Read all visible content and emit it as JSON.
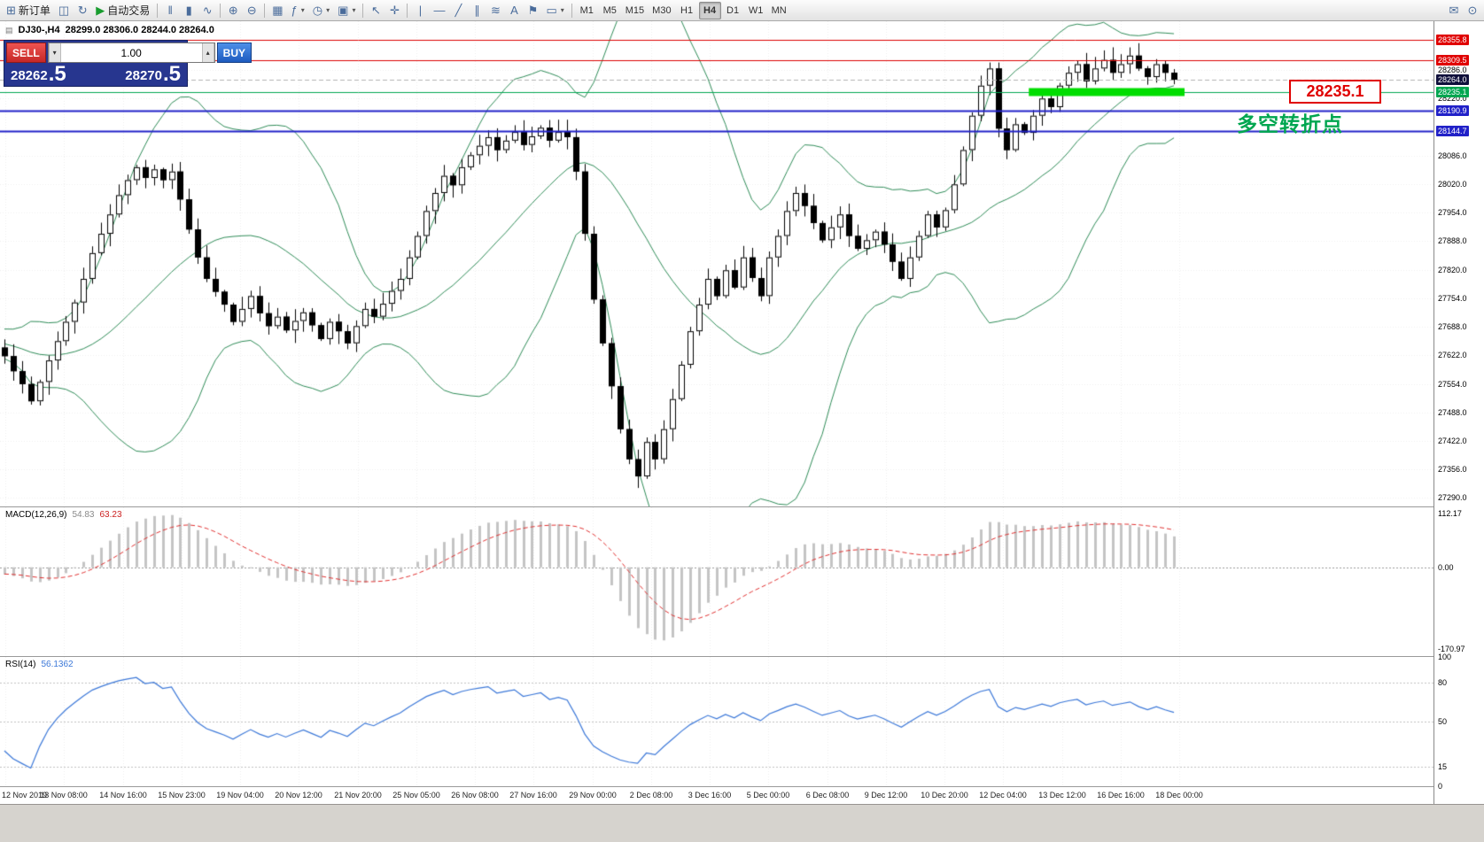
{
  "toolbar": {
    "items": [
      {
        "type": "button",
        "name": "new-order-button",
        "glyph": "⊞",
        "label": "新订单"
      },
      {
        "type": "button",
        "name": "chart-window-icon",
        "glyph": "◫"
      },
      {
        "type": "button",
        "name": "refresh-icon",
        "glyph": "↻"
      },
      {
        "type": "button",
        "name": "auto-trading-button",
        "glyph": "▶",
        "label": "自动交易",
        "glyph_color": "#189c2e"
      },
      {
        "type": "sep"
      },
      {
        "type": "button",
        "name": "bar-chart-type-icon",
        "glyph": "‖"
      },
      {
        "type": "button",
        "name": "candlestick-type-icon",
        "glyph": "▮"
      },
      {
        "type": "button",
        "name": "line-chart-type-icon",
        "glyph": "∿"
      },
      {
        "type": "sep"
      },
      {
        "type": "button",
        "name": "zoom-in-icon",
        "glyph": "⊕"
      },
      {
        "type": "button",
        "name": "zoom-out-icon",
        "glyph": "⊖"
      },
      {
        "type": "sep"
      },
      {
        "type": "button",
        "name": "tile-windows-icon",
        "glyph": "▦"
      },
      {
        "type": "button",
        "name": "indicators-icon",
        "glyph": "ƒ",
        "dropdown": true
      },
      {
        "type": "button",
        "name": "periods-icon",
        "glyph": "◷",
        "dropdown": true
      },
      {
        "type": "button",
        "name": "templates-icon",
        "glyph": "▣",
        "dropdown": true
      },
      {
        "type": "sep"
      },
      {
        "type": "button",
        "name": "cursor-icon",
        "glyph": "↖"
      },
      {
        "type": "button",
        "name": "crosshair-icon",
        "glyph": "✛"
      },
      {
        "type": "sep"
      },
      {
        "type": "button",
        "name": "vertical-line-icon",
        "glyph": "|"
      },
      {
        "type": "button",
        "name": "horizontal-line-icon",
        "glyph": "—"
      },
      {
        "type": "button",
        "name": "trendline-icon",
        "glyph": "╱"
      },
      {
        "type": "button",
        "name": "channel-icon",
        "glyph": "∥"
      },
      {
        "type": "button",
        "name": "fibonacci-icon",
        "glyph": "≋"
      },
      {
        "type": "button",
        "name": "text-tool-icon",
        "glyph": "A"
      },
      {
        "type": "button",
        "name": "label-tool-icon",
        "glyph": "⚑"
      },
      {
        "type": "button",
        "name": "shapes-icon",
        "glyph": "▭",
        "dropdown": true
      },
      {
        "type": "sep"
      },
      {
        "type": "tf-group"
      },
      {
        "type": "spacer"
      },
      {
        "type": "button",
        "name": "chat-icon",
        "glyph": "✉"
      },
      {
        "type": "button",
        "name": "search-icon",
        "glyph": "⊙"
      }
    ],
    "timeframes": [
      "M1",
      "M5",
      "M15",
      "M30",
      "H1",
      "H4",
      "D1",
      "W1",
      "MN"
    ],
    "active_timeframe": "H4"
  },
  "chart": {
    "symbol_label": "DJ30-,H4",
    "ohlc_text": "28299.0 28306.0 28244.0 28264.0",
    "symbol_icon_glyph": "▤"
  },
  "trade_panel": {
    "sell_label": "SELL",
    "buy_label": "BUY",
    "volume": "1.00",
    "volume_down_glyph": "▾",
    "volume_up_glyph": "▴",
    "sell_price_base": "28262",
    "sell_price_fraction": ".5",
    "buy_price_base": "28270",
    "buy_price_fraction": ".5"
  },
  "annotations": {
    "price_label": "28235.1",
    "turning_point_label": "多空转折点"
  },
  "price_axis": {
    "special": [
      {
        "value": "28355.8",
        "price": 28355.8,
        "bg": "#e00000",
        "role": "resistance"
      },
      {
        "value": "28309.5",
        "price": 28309.5,
        "bg": "#e00000",
        "role": "resistance"
      },
      {
        "value": "28264.0",
        "price": 28264.0,
        "bg": "#10103c",
        "role": "current-price"
      },
      {
        "value": "28235.1",
        "price": 28235.1,
        "bg": "#00a650",
        "role": "pivot"
      },
      {
        "value": "28190.9",
        "price": 28190.9,
        "bg": "#2121c8",
        "role": "support"
      },
      {
        "value": "28144.7",
        "price": 28144.7,
        "bg": "#2121c8",
        "role": "support"
      }
    ],
    "regular": [
      "28286.0",
      "28220.0",
      "28086.0",
      "28020.0",
      "27954.0",
      "27888.0",
      "27820.0",
      "27754.0",
      "27688.0",
      "27622.0",
      "27554.0",
      "27488.0",
      "27422.0",
      "27356.0",
      "27290.0"
    ]
  },
  "macd_panel": {
    "title": "MACD(12,26,9)",
    "value_main": "54.83",
    "value_signal": "63.23",
    "axis": [
      {
        "text": "112.17",
        "value": 112.17
      },
      {
        "text": "0.00",
        "value": 0
      },
      {
        "text": "-170.97",
        "value": -170.97
      }
    ]
  },
  "rsi_panel": {
    "title": "RSI(14)",
    "value": "56.1362",
    "axis": [
      {
        "text": "100",
        "value": 100
      },
      {
        "text": "80",
        "value": 80
      },
      {
        "text": "50",
        "value": 50
      },
      {
        "text": "15",
        "value": 15
      },
      {
        "text": "0",
        "value": 0
      }
    ]
  },
  "time_axis": {
    "labels": [
      "12 Nov 2019",
      "13 Nov 08:00",
      "14 Nov 16:00",
      "15 Nov 23:00",
      "19 Nov 04:00",
      "20 Nov 12:00",
      "21 Nov 20:00",
      "25 Nov 05:00",
      "26 Nov 08:00",
      "27 Nov 16:00",
      "29 Nov 00:00",
      "2 Dec 08:00",
      "3 Dec 16:00",
      "5 Dec 00:00",
      "6 Dec 08:00",
      "9 Dec 12:00",
      "10 Dec 20:00",
      "12 Dec 04:00",
      "13 Dec 12:00",
      "16 Dec 16:00",
      "18 Dec 00:00"
    ]
  },
  "chart_data": {
    "type": "candlestick",
    "title": "DJ30-,H4",
    "last_ohlc": {
      "open": 28299.0,
      "high": 28306.0,
      "low": 28244.0,
      "close": 28264.0
    },
    "y_range": [
      27270,
      28400
    ],
    "first_open": 27640,
    "warmup_closes": [
      27700,
      27690,
      27685,
      27670,
      27660,
      27650,
      27645,
      27640,
      27650,
      27660,
      27655,
      27645,
      27635,
      27630,
      27640,
      27650,
      27645,
      27635,
      27630,
      27640
    ],
    "closes": [
      27620,
      27585,
      27555,
      27515,
      27560,
      27610,
      27655,
      27700,
      27745,
      27800,
      27860,
      27905,
      27950,
      27995,
      28030,
      28060,
      28035,
      28055,
      28030,
      28050,
      27985,
      27915,
      27850,
      27800,
      27770,
      27740,
      27700,
      27730,
      27760,
      27720,
      27690,
      27712,
      27680,
      27702,
      27722,
      27692,
      27660,
      27700,
      27678,
      27650,
      27690,
      27730,
      27712,
      27742,
      27772,
      27800,
      27850,
      27900,
      27958,
      28000,
      28040,
      28018,
      28060,
      28088,
      28110,
      28130,
      28100,
      28122,
      28142,
      28112,
      28132,
      28152,
      28122,
      28142,
      28130,
      28050,
      27905,
      27752,
      27650,
      27550,
      27450,
      27380,
      27340,
      27420,
      27380,
      27450,
      27520,
      27600,
      27678,
      27740,
      27800,
      27760,
      27820,
      27780,
      27850,
      27802,
      27760,
      27850,
      27900,
      27958,
      28000,
      27970,
      27930,
      27890,
      27920,
      27950,
      27900,
      27870,
      27890,
      27910,
      27880,
      27840,
      27800,
      27850,
      27900,
      27950,
      27920,
      27960,
      28020,
      28100,
      28180,
      28250,
      28290,
      28150,
      28100,
      28160,
      28140,
      28180,
      28220,
      28200,
      28250,
      28280,
      28300,
      28260,
      28290,
      28310,
      28280,
      28300,
      28320,
      28290,
      28270,
      28300,
      28280,
      28264
    ],
    "bollinger": {
      "period": 20,
      "deviation": 2,
      "color": "#2e8b57"
    },
    "horizontal_lines": [
      {
        "price": 28355.8,
        "color": "#dd0000",
        "style": "solid",
        "width": 1
      },
      {
        "price": 28309.5,
        "color": "#dd0000",
        "style": "solid",
        "width": 1
      },
      {
        "price": 28264.0,
        "color": "#b0b0b0",
        "style": "dash",
        "width": 1
      },
      {
        "price": 28235.1,
        "color": "#00a650",
        "style": "solid",
        "width": 1
      },
      {
        "price": 28190.9,
        "color": "#2121c8",
        "style": "solid",
        "width": 2
      },
      {
        "price": 28144.7,
        "color": "#2121c8",
        "style": "solid",
        "width": 2
      }
    ],
    "highlight_segment": {
      "price": 28235.1,
      "from_bar": 117,
      "color": "#00dd00",
      "width": 9
    },
    "macd": {
      "fast": 12,
      "slow": 26,
      "signal": 9,
      "y_range": [
        -185,
        125
      ],
      "bar_color": "#c4c4c4",
      "signal_color": "#e03030"
    },
    "rsi": {
      "period": 14,
      "levels": [
        80,
        50,
        15
      ],
      "y_range": [
        0,
        100
      ],
      "line_color": "#3c78d8"
    }
  }
}
